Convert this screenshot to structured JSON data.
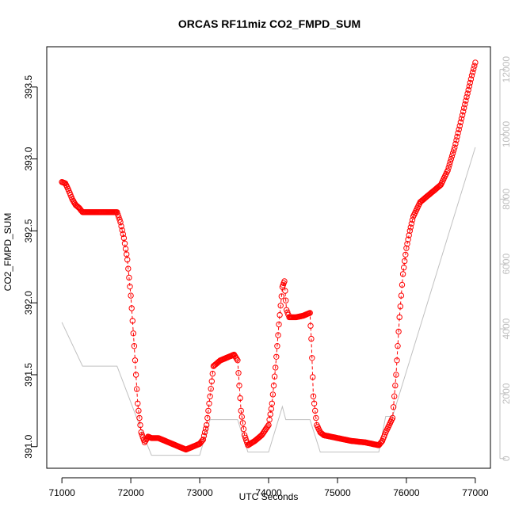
{
  "chart_data": {
    "type": "line",
    "title": "ORCAS RF11miz CO2_FMPD_SUM",
    "xlabel": "UTC Seconds",
    "ylabel": "CO2_FMPD_SUM",
    "xlim": [
      70780,
      77220
    ],
    "ylim": [
      390.85,
      393.78
    ],
    "y2lim": [
      -300,
      12700
    ],
    "x_ticks": [
      71000,
      72000,
      73000,
      74000,
      75000,
      76000,
      77000
    ],
    "y_ticks": [
      391.0,
      391.5,
      392.0,
      392.5,
      393.0,
      393.5
    ],
    "y_tick_labels": [
      "391.0",
      "391.5",
      "392.0",
      "392.5",
      "393.0",
      "393.5"
    ],
    "y2_ticks": [
      0,
      2000,
      4000,
      6000,
      8000,
      10000,
      12000
    ],
    "grid": false,
    "series": [
      {
        "role": "primary",
        "color": "#ff0000",
        "marker": "open-circle",
        "line": "dashed",
        "points": [
          [
            71000,
            392.84
          ],
          [
            71050,
            392.83
          ],
          [
            71100,
            392.78
          ],
          [
            71150,
            392.72
          ],
          [
            71200,
            392.68
          ],
          [
            71250,
            392.66
          ],
          [
            71300,
            392.63
          ],
          [
            71500,
            392.63
          ],
          [
            71700,
            392.63
          ],
          [
            71800,
            392.63
          ],
          [
            71850,
            392.56
          ],
          [
            71900,
            392.45
          ],
          [
            71950,
            392.3
          ],
          [
            72000,
            392.05
          ],
          [
            72050,
            391.7
          ],
          [
            72100,
            391.3
          ],
          [
            72150,
            391.1
          ],
          [
            72200,
            391.03
          ],
          [
            72250,
            391.07
          ],
          [
            72300,
            391.06
          ],
          [
            72400,
            391.06
          ],
          [
            72500,
            391.04
          ],
          [
            72600,
            391.02
          ],
          [
            72700,
            391.0
          ],
          [
            72800,
            390.98
          ],
          [
            72900,
            391.0
          ],
          [
            73000,
            391.02
          ],
          [
            73050,
            391.05
          ],
          [
            73100,
            391.15
          ],
          [
            73150,
            391.35
          ],
          [
            73200,
            391.56
          ],
          [
            73250,
            391.58
          ],
          [
            73300,
            391.6
          ],
          [
            73400,
            391.62
          ],
          [
            73500,
            391.64
          ],
          [
            73550,
            391.6
          ],
          [
            73600,
            391.25
          ],
          [
            73650,
            391.08
          ],
          [
            73700,
            391.01
          ],
          [
            73800,
            391.04
          ],
          [
            73900,
            391.08
          ],
          [
            74000,
            391.15
          ],
          [
            74050,
            391.3
          ],
          [
            74100,
            391.55
          ],
          [
            74150,
            391.85
          ],
          [
            74200,
            392.11
          ],
          [
            74230,
            392.15
          ],
          [
            74260,
            391.95
          ],
          [
            74300,
            391.9
          ],
          [
            74400,
            391.9
          ],
          [
            74500,
            391.91
          ],
          [
            74600,
            391.93
          ],
          [
            74620,
            391.75
          ],
          [
            74650,
            391.35
          ],
          [
            74700,
            391.15
          ],
          [
            74750,
            391.1
          ],
          [
            74800,
            391.08
          ],
          [
            75000,
            391.06
          ],
          [
            75200,
            391.04
          ],
          [
            75400,
            391.03
          ],
          [
            75600,
            391.01
          ],
          [
            75650,
            391.04
          ],
          [
            75700,
            391.1
          ],
          [
            75750,
            391.15
          ],
          [
            75800,
            391.2
          ],
          [
            75850,
            391.5
          ],
          [
            75900,
            391.9
          ],
          [
            75950,
            392.2
          ],
          [
            76000,
            392.38
          ],
          [
            76050,
            392.5
          ],
          [
            76100,
            392.6
          ],
          [
            76200,
            392.7
          ],
          [
            76300,
            392.74
          ],
          [
            76400,
            392.78
          ],
          [
            76500,
            392.82
          ],
          [
            76600,
            392.92
          ],
          [
            76700,
            393.08
          ],
          [
            76800,
            393.28
          ],
          [
            76900,
            393.48
          ],
          [
            76950,
            393.58
          ],
          [
            77000,
            393.67
          ]
        ]
      },
      {
        "role": "secondary",
        "color": "#c0c0c0",
        "axis": "right",
        "points": [
          [
            71000,
            4200
          ],
          [
            71300,
            2850
          ],
          [
            71800,
            2850
          ],
          [
            72150,
            900
          ],
          [
            72300,
            100
          ],
          [
            72800,
            100
          ],
          [
            73000,
            100
          ],
          [
            73150,
            1200
          ],
          [
            73550,
            1200
          ],
          [
            73700,
            200
          ],
          [
            74000,
            200
          ],
          [
            74200,
            1600
          ],
          [
            74250,
            1200
          ],
          [
            74600,
            1200
          ],
          [
            74750,
            200
          ],
          [
            75600,
            200
          ],
          [
            75700,
            1300
          ],
          [
            75800,
            1300
          ],
          [
            77000,
            9600
          ]
        ]
      }
    ]
  }
}
